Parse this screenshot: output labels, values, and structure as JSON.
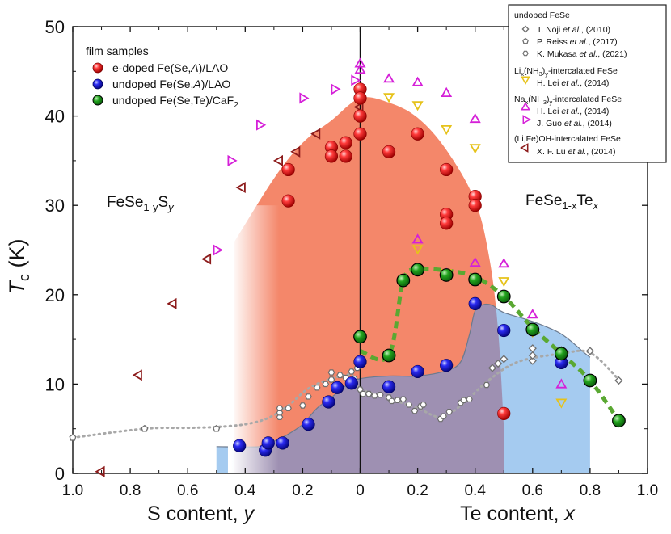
{
  "chart_data": {
    "type": "scatter",
    "title": "",
    "ylabel_main": "T",
    "ylabel_sub": "c",
    "ylabel_unit": " (K)",
    "xlabel_left_text": "S content, ",
    "xlabel_left_var": "y",
    "xlabel_right_text": "Te content, ",
    "xlabel_right_var": "x",
    "x_domain": [
      -1.0,
      1.0
    ],
    "ylim": [
      0,
      50
    ],
    "y_ticks": [
      0,
      10,
      20,
      30,
      40,
      50
    ],
    "x_ticks": [
      -1.0,
      -0.8,
      -0.6,
      -0.4,
      -0.2,
      0,
      0.2,
      0.4,
      0.6,
      0.8,
      1.0
    ],
    "x_tick_labels": [
      "1.0",
      "0.8",
      "0.6",
      "0.4",
      "0.2",
      "0",
      "0.2",
      "0.4",
      "0.6",
      "0.8",
      "1.0"
    ],
    "region_labels": {
      "left_main": "FeSe",
      "left_sub": "1-y",
      "left_tail": "S",
      "left_tail_sub": "y",
      "right_main": "FeSe",
      "right_sub": "1-x",
      "right_tail": "Te",
      "right_tail_sub": "x"
    },
    "film_legend": {
      "title": "film samples",
      "entries": [
        {
          "key": "red",
          "label": "e-doped Fe(Se,",
          "label_italic": "A",
          "label_tail": ")/LAO"
        },
        {
          "key": "blue",
          "label": "undoped Fe(Se,",
          "label_italic": "A",
          "label_tail": ")/LAO"
        },
        {
          "key": "green",
          "label": "undoped Fe(Se,Te)/CaF",
          "label_italic": "",
          "label_tail": "2"
        }
      ]
    },
    "ref_legend": {
      "groups": [
        {
          "title": "undoped FeSe",
          "items": [
            {
              "marker": "diamond",
              "name": "T. Noji ",
              "etal": "et al.",
              "year": ", (2010)"
            },
            {
              "marker": "pentagon",
              "name": "P. Reiss ",
              "etal": "et al.",
              "year": ", (2017)"
            },
            {
              "marker": "hexagon",
              "name": "K. Mukasa ",
              "etal": "et al.",
              "year": ", (2021)"
            }
          ]
        },
        {
          "title": "Li",
          "title_sub": "x",
          "title_mid": "(NH",
          "title_sub2": "3",
          "title_mid2": ")",
          "title_sub3": "y",
          "title_tail": "-intercalated FeSe",
          "items": [
            {
              "marker": "tri-down",
              "name": "H. Lei ",
              "etal": "et al.",
              "year": ", (2014)"
            }
          ]
        },
        {
          "title": "Na",
          "title_sub": "x",
          "title_mid": "(NH",
          "title_sub2": "3",
          "title_mid2": ")",
          "title_sub3": "y",
          "title_tail": "-intercalated FeSe",
          "items": [
            {
              "marker": "tri-up",
              "name": "H. Lei ",
              "etal": "et al.",
              "year": ", (2014)"
            },
            {
              "marker": "tri-right",
              "name": "J. Guo ",
              "etal": "et al.",
              "year": ", (2014)"
            }
          ]
        },
        {
          "title": "(Li,Fe)OH-intercalated FeSe",
          "items": [
            {
              "marker": "tri-left",
              "name": "X. F. Lu ",
              "etal": "et al.",
              "year": ", (2014)"
            }
          ]
        }
      ]
    },
    "colors": {
      "red": "#e82020",
      "blue": "#1f1fd8",
      "green": "#1a9a1a",
      "orange_fill": "#f4876a",
      "blue_fill": "#a5cbf0",
      "purple_fill": "#9e90b2",
      "yellow": "#e6c21a",
      "magenta": "#d520d8",
      "darkred": "#8c1a1a",
      "green_dash": "#5aa832",
      "gray": "#8c8c8c"
    },
    "regions": {
      "orange_top": [
        [
          -0.44,
          25.8
        ],
        [
          -0.3,
          33
        ],
        [
          -0.2,
          37
        ],
        [
          -0.1,
          39.5
        ],
        [
          0,
          42
        ],
        [
          0.1,
          41.5
        ],
        [
          0.2,
          39.8
        ],
        [
          0.3,
          36.2
        ],
        [
          0.4,
          30.5
        ],
        [
          0.45,
          24
        ],
        [
          0.48,
          16
        ],
        [
          0.5,
          5.2
        ],
        [
          0.5,
          0
        ]
      ],
      "blue_top": [
        [
          -0.5,
          3
        ],
        [
          -0.35,
          3
        ],
        [
          -0.3,
          3.6
        ],
        [
          -0.25,
          4.4
        ],
        [
          -0.2,
          5.5
        ],
        [
          -0.15,
          7.3
        ],
        [
          -0.1,
          8.5
        ],
        [
          -0.05,
          9.8
        ],
        [
          0,
          10.6
        ],
        [
          0.1,
          10.9
        ],
        [
          0.2,
          10.9
        ],
        [
          0.3,
          11.5
        ],
        [
          0.35,
          12.5
        ],
        [
          0.38,
          15.5
        ],
        [
          0.4,
          18.2
        ],
        [
          0.43,
          18.9
        ],
        [
          0.46,
          18.8
        ],
        [
          0.5,
          18
        ],
        [
          0.6,
          17
        ],
        [
          0.7,
          15.6
        ],
        [
          0.78,
          13.5
        ],
        [
          0.8,
          13
        ],
        [
          0.8,
          0
        ]
      ]
    },
    "series": [
      {
        "name": "e-doped Fe(Se,A)/LAO",
        "marker": "ball",
        "color_key": "red",
        "points": [
          [
            -0.25,
            30.5
          ],
          [
            -0.25,
            34
          ],
          [
            -0.1,
            36.5
          ],
          [
            -0.1,
            35.5
          ],
          [
            -0.05,
            37
          ],
          [
            -0.05,
            35.5
          ],
          [
            0,
            43
          ],
          [
            0,
            42
          ],
          [
            0,
            40
          ],
          [
            0,
            38
          ],
          [
            0.1,
            36
          ],
          [
            0.2,
            38
          ],
          [
            0.3,
            34
          ],
          [
            0.3,
            29
          ],
          [
            0.3,
            28
          ],
          [
            0.4,
            31
          ],
          [
            0.4,
            30
          ],
          [
            0.5,
            6.7
          ]
        ]
      },
      {
        "name": "undoped Fe(Se,A)/LAO",
        "marker": "ball",
        "color_key": "blue",
        "points": [
          [
            -0.42,
            3.1
          ],
          [
            -0.33,
            2.6
          ],
          [
            -0.32,
            3.4
          ],
          [
            -0.27,
            3.4
          ],
          [
            -0.18,
            5.5
          ],
          [
            -0.11,
            8
          ],
          [
            -0.08,
            9.6
          ],
          [
            -0.03,
            10.1
          ],
          [
            0,
            12.5
          ],
          [
            0.1,
            9.7
          ],
          [
            0.2,
            11.4
          ],
          [
            0.3,
            12.1
          ],
          [
            0.4,
            19
          ],
          [
            0.5,
            16
          ],
          [
            0.6,
            16.1
          ],
          [
            0.7,
            12.4
          ]
        ]
      },
      {
        "name": "undoped Fe(Se,Te)/CaF2",
        "marker": "ball",
        "color_key": "green",
        "points": [
          [
            0,
            15.3
          ],
          [
            0.1,
            13.2
          ],
          [
            0.15,
            21.6
          ],
          [
            0.2,
            22.8
          ],
          [
            0.3,
            22.2
          ],
          [
            0.4,
            21.7
          ],
          [
            0.5,
            19.8
          ],
          [
            0.6,
            16.1
          ],
          [
            0.7,
            13.4
          ],
          [
            0.8,
            10.4
          ],
          [
            0.9,
            5.9
          ]
        ]
      },
      {
        "name": "Li(NH3)-intercalated H. Lei",
        "marker": "tri-down",
        "color_key": "yellow",
        "points": [
          [
            0.1,
            42.2
          ],
          [
            0.2,
            41.3
          ],
          [
            0.3,
            38.6
          ],
          [
            0.4,
            36.5
          ],
          [
            0.2,
            25.2
          ],
          [
            0.3,
            22.5
          ],
          [
            0.5,
            21.6
          ],
          [
            0.6,
            15.9
          ],
          [
            0.7,
            8
          ]
        ]
      },
      {
        "name": "Na(NH3)-intercalated H. Lei",
        "marker": "tri-up",
        "color_key": "magenta",
        "points": [
          [
            0,
            45.8
          ],
          [
            0,
            45.1
          ],
          [
            0.1,
            44.1
          ],
          [
            0.2,
            43.7
          ],
          [
            0.3,
            42.5
          ],
          [
            0.4,
            39.6
          ],
          [
            0.2,
            26.1
          ],
          [
            0.3,
            22.3
          ],
          [
            0.4,
            23.5
          ],
          [
            0.5,
            23.4
          ],
          [
            0.6,
            17.7
          ],
          [
            0.7,
            9.9
          ]
        ]
      },
      {
        "name": "Na(NH3)-intercalated J. Guo",
        "marker": "tri-right",
        "color_key": "magenta",
        "points": [
          [
            -0.5,
            25
          ],
          [
            -0.45,
            35
          ],
          [
            -0.35,
            39
          ],
          [
            -0.2,
            42
          ],
          [
            -0.09,
            43
          ],
          [
            -0.02,
            44
          ]
        ]
      },
      {
        "name": "(Li,Fe)OH-intercalated X. F. Lu",
        "marker": "tri-left",
        "color_key": "darkred",
        "points": [
          [
            -0.9,
            0.2
          ],
          [
            -0.77,
            11
          ],
          [
            -0.65,
            19
          ],
          [
            -0.53,
            24
          ],
          [
            -0.41,
            32
          ],
          [
            -0.28,
            35
          ],
          [
            -0.22,
            36
          ],
          [
            -0.15,
            38
          ],
          [
            0,
            41
          ]
        ]
      },
      {
        "name": "T. Noji (2010)",
        "marker": "diamond",
        "color_key": "gray",
        "points": [
          [
            0.46,
            11.8
          ],
          [
            0.48,
            12.3
          ],
          [
            0.5,
            12.8
          ],
          [
            0.6,
            12.6
          ],
          [
            0.6,
            13.2
          ],
          [
            0.6,
            14
          ],
          [
            0.7,
            13.8
          ],
          [
            0.7,
            13.2
          ],
          [
            0.8,
            13.7
          ],
          [
            0.9,
            10.4
          ]
        ]
      },
      {
        "name": "P. Reiss (2017)",
        "marker": "pentagon",
        "color_key": "gray",
        "points": [
          [
            -1.0,
            4
          ],
          [
            -0.75,
            5
          ],
          [
            -0.5,
            5
          ]
        ]
      },
      {
        "name": "K. Mukasa (2021)",
        "marker": "hexagon",
        "color_key": "gray",
        "points": [
          [
            -0.28,
            6.3
          ],
          [
            -0.28,
            6.8
          ],
          [
            -0.28,
            7.3
          ],
          [
            -0.25,
            7.3
          ],
          [
            -0.2,
            7.6
          ],
          [
            -0.18,
            8.6
          ],
          [
            -0.15,
            9.6
          ],
          [
            -0.12,
            10
          ],
          [
            -0.1,
            10.5
          ],
          [
            -0.1,
            11.3
          ],
          [
            -0.07,
            11
          ],
          [
            -0.05,
            10.7
          ],
          [
            -0.03,
            11.4
          ],
          [
            -0.02,
            10.6
          ],
          [
            -0.01,
            11.8
          ],
          [
            0,
            9.4
          ],
          [
            0.01,
            8.9
          ],
          [
            0.03,
            8.9
          ],
          [
            0.05,
            8.7
          ],
          [
            0.07,
            8.8
          ],
          [
            0.1,
            8.5
          ],
          [
            0.11,
            8.1
          ],
          [
            0.13,
            8.2
          ],
          [
            0.15,
            8.3
          ],
          [
            0.17,
            7.7
          ],
          [
            0.19,
            7
          ],
          [
            0.21,
            7.5
          ],
          [
            0.22,
            7.7
          ],
          [
            0.28,
            6.1
          ],
          [
            0.29,
            6.4
          ],
          [
            0.31,
            6.9
          ],
          [
            0.35,
            7.9
          ],
          [
            0.36,
            8.2
          ],
          [
            0.38,
            8.3
          ],
          [
            0.44,
            9.9
          ]
        ]
      }
    ],
    "lines": [
      {
        "name": "gray guide",
        "color_key": "gray",
        "dash": "dotted",
        "points": [
          [
            -1.0,
            4
          ],
          [
            -0.75,
            5
          ],
          [
            -0.6,
            5.1
          ],
          [
            -0.5,
            5.2
          ],
          [
            -0.4,
            5.5
          ],
          [
            -0.32,
            6.2
          ],
          [
            -0.25,
            7.6
          ],
          [
            -0.18,
            9.5
          ],
          [
            -0.1,
            10.6
          ],
          [
            -0.03,
            11
          ],
          [
            0,
            9.5
          ],
          [
            0.1,
            8.4
          ],
          [
            0.2,
            7.3
          ],
          [
            0.28,
            6.3
          ],
          [
            0.35,
            7.6
          ],
          [
            0.45,
            10.5
          ],
          [
            0.55,
            12.5
          ],
          [
            0.7,
            13.4
          ],
          [
            0.8,
            13.5
          ],
          [
            0.9,
            10.5
          ]
        ]
      },
      {
        "name": "green guide",
        "color_key": "green_dash",
        "dash": "dashed",
        "points": [
          [
            0,
            13.7
          ],
          [
            0.1,
            13.2
          ],
          [
            0.15,
            21.6
          ],
          [
            0.2,
            22.8
          ],
          [
            0.3,
            22.7
          ],
          [
            0.4,
            22
          ],
          [
            0.5,
            19.8
          ],
          [
            0.6,
            16.3
          ],
          [
            0.7,
            13.4
          ],
          [
            0.8,
            10.4
          ],
          [
            0.9,
            5.9
          ]
        ]
      }
    ]
  }
}
